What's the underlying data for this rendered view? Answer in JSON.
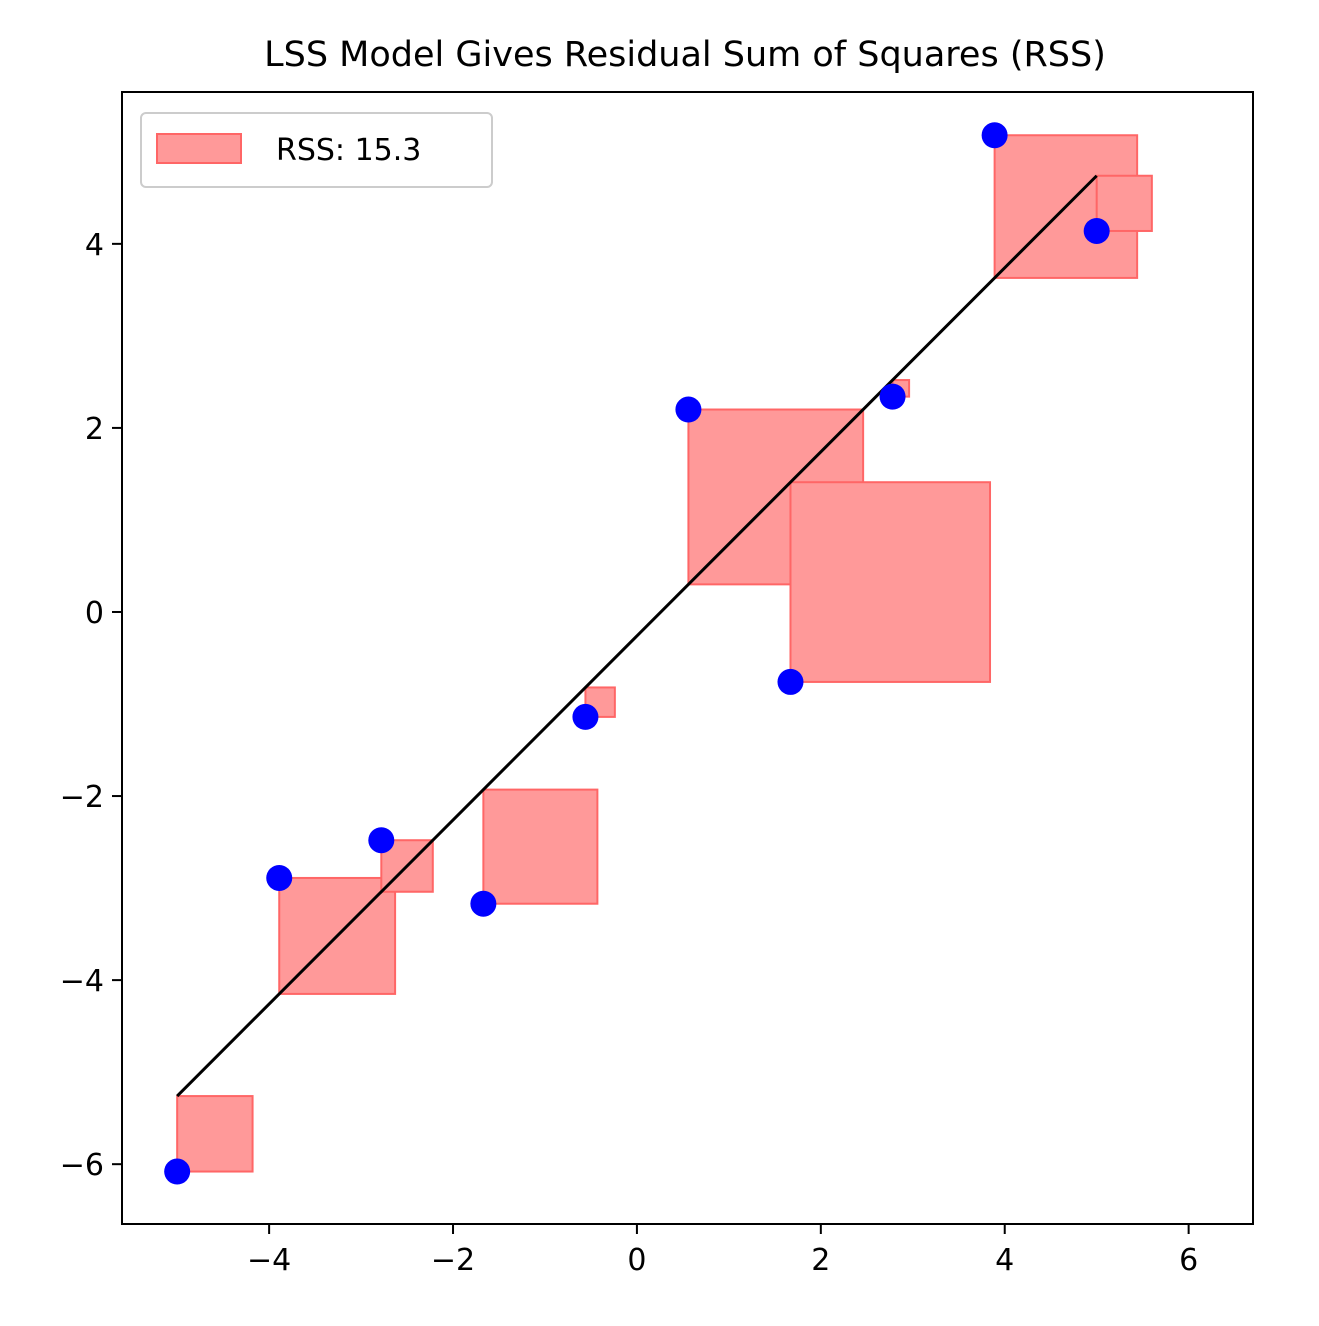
{
  "chart_data": {
    "type": "scatter",
    "title": "LSS Model Gives Residual Sum of Squares (RSS)",
    "xlabel": "",
    "ylabel": "",
    "xlim": [
      -5.6,
      6.7
    ],
    "ylim": [
      -6.65,
      5.65
    ],
    "x_ticks": [
      -4,
      -2,
      0,
      2,
      4,
      6
    ],
    "y_ticks": [
      -6,
      -4,
      -2,
      0,
      2,
      4
    ],
    "x_tick_labels": [
      "−4",
      "−2",
      "0",
      "2",
      "4",
      "6"
    ],
    "y_tick_labels": [
      "−6",
      "−4",
      "−2",
      "0",
      "2",
      "4"
    ],
    "points": [
      {
        "x": -5.0,
        "y": -6.08
      },
      {
        "x": -3.89,
        "y": -2.89
      },
      {
        "x": -2.78,
        "y": -2.48
      },
      {
        "x": -1.67,
        "y": -3.17
      },
      {
        "x": -0.56,
        "y": -1.14
      },
      {
        "x": 0.56,
        "y": 2.2
      },
      {
        "x": 1.67,
        "y": -0.76
      },
      {
        "x": 2.78,
        "y": 2.34
      },
      {
        "x": 3.89,
        "y": 5.18
      },
      {
        "x": 5.0,
        "y": 4.14
      }
    ],
    "fit_line": {
      "x": [
        -5.0,
        5.0
      ],
      "y": [
        -5.26,
        4.74
      ]
    },
    "legend": {
      "label": "RSS: 15.3",
      "placement": "upper-left"
    },
    "grid": false,
    "colors": {
      "points": "#0000ff",
      "line": "#000000",
      "squares_fill": "#ff9999",
      "squares_edge": "#ff6666"
    }
  }
}
